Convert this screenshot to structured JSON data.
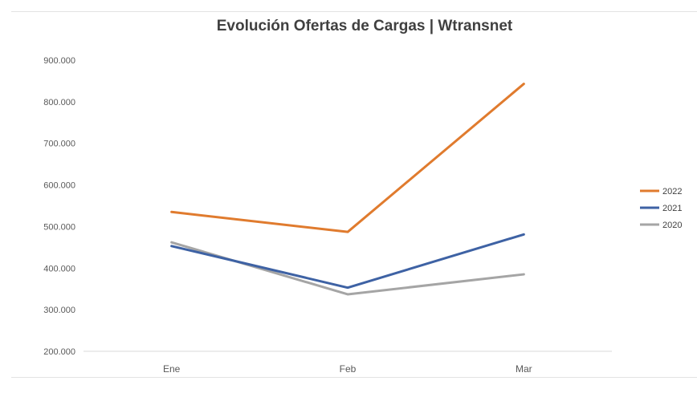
{
  "chart_data": {
    "type": "line",
    "title": "Evolución Ofertas de Cargas | Wtransnet",
    "categories": [
      "Ene",
      "Feb",
      "Mar"
    ],
    "ylim": [
      200000,
      900000
    ],
    "yticks": [
      200000,
      300000,
      400000,
      500000,
      600000,
      700000,
      800000,
      900000
    ],
    "ytick_labels": [
      "200.000",
      "300.000",
      "400.000",
      "500.000",
      "600.000",
      "700.000",
      "800.000",
      "900.000"
    ],
    "grid": false,
    "legend_position": "right",
    "series": [
      {
        "name": "2022",
        "color": "#E07B2E",
        "values": [
          535000,
          487000,
          843000
        ]
      },
      {
        "name": "2021",
        "color": "#3E62A4",
        "values": [
          453000,
          353000,
          481000
        ]
      },
      {
        "name": "2020",
        "color": "#A5A5A5",
        "values": [
          462000,
          337000,
          385000
        ]
      }
    ]
  }
}
